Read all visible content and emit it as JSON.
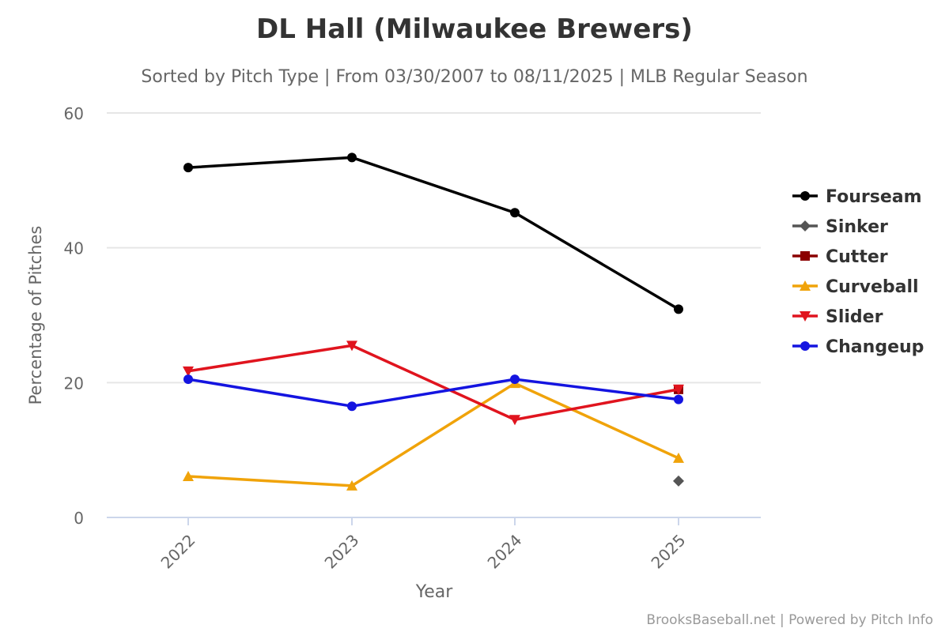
{
  "chart_data": {
    "type": "line",
    "title": "DL Hall (Milwaukee Brewers)",
    "subtitle": "Sorted by Pitch Type | From 03/30/2007 to 08/11/2025 | MLB Regular Season",
    "xlabel": "Year",
    "ylabel": "Percentage of Pitches",
    "categories": [
      "2022",
      "2023",
      "2024",
      "2025"
    ],
    "ylim": [
      0,
      60
    ],
    "yticks": [
      0,
      20,
      40,
      60
    ],
    "grid": true,
    "legend": "right",
    "credit": "BrooksBaseball.net | Powered by Pitch Info",
    "series": [
      {
        "name": "Fourseam",
        "color": "#000000",
        "marker": "circle",
        "values": [
          51.9,
          53.4,
          45.2,
          30.9
        ]
      },
      {
        "name": "Sinker",
        "color": "#555555",
        "marker": "diamond",
        "values": [
          null,
          null,
          null,
          5.4
        ]
      },
      {
        "name": "Cutter",
        "color": "#8b0000",
        "marker": "square",
        "values": [
          null,
          null,
          null,
          19.0
        ]
      },
      {
        "name": "Curveball",
        "color": "#f0a30a",
        "marker": "triangle",
        "values": [
          6.1,
          4.7,
          19.9,
          8.8
        ]
      },
      {
        "name": "Slider",
        "color": "#e0141e",
        "marker": "triangle-down",
        "values": [
          21.7,
          25.5,
          14.5,
          19.0
        ]
      },
      {
        "name": "Changeup",
        "color": "#1414e0",
        "marker": "circle",
        "values": [
          20.5,
          16.5,
          20.5,
          17.5
        ]
      }
    ]
  }
}
